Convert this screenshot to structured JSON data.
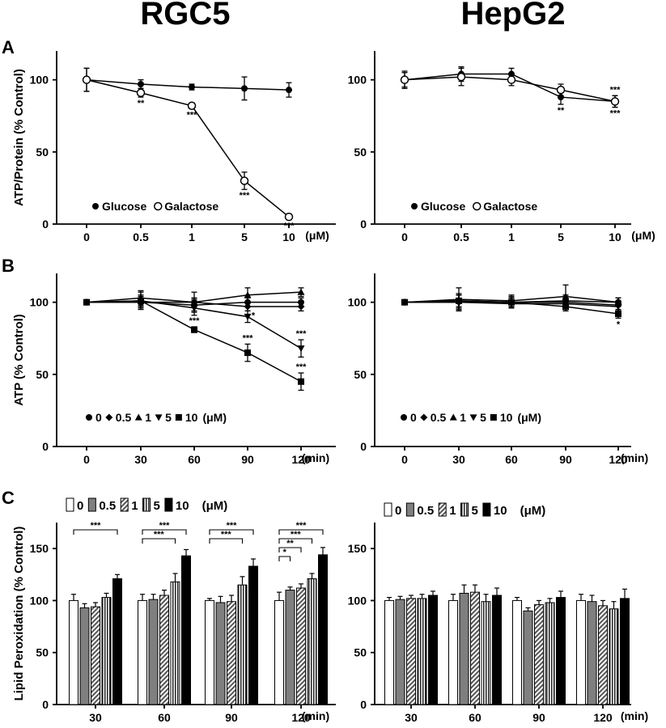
{
  "figure": {
    "column_titles": [
      "RGC5",
      "HepG2"
    ],
    "panel_labels": [
      "A",
      "B",
      "C"
    ]
  },
  "chart_data": [
    {
      "id": "A-RGC5",
      "type": "line",
      "panel": "A",
      "title": "RGC5",
      "ylabel": "ATP/Protein (% Control)",
      "xunit": "(μM)",
      "categories": [
        "0",
        "0.5",
        "1",
        "5",
        "10"
      ],
      "ylim": [
        0,
        120
      ],
      "yticks": [
        0,
        50,
        100
      ],
      "legend": [
        "Glucose",
        "Galactose"
      ],
      "series": [
        {
          "name": "Glucose",
          "marker": "filled-circle",
          "values": [
            100,
            97,
            95,
            94,
            93
          ],
          "errors": [
            8,
            3,
            2,
            8,
            5
          ],
          "labels": [
            "",
            "",
            "",
            "",
            ""
          ]
        },
        {
          "name": "Galactose",
          "marker": "open-circle",
          "values": [
            100,
            91,
            82,
            30,
            5
          ],
          "errors": [
            8,
            3,
            2,
            6,
            2
          ],
          "labels": [
            "",
            "**",
            "***",
            "***",
            "***"
          ]
        }
      ]
    },
    {
      "id": "A-HepG2",
      "type": "line",
      "panel": "A",
      "title": "HepG2",
      "ylabel": "",
      "xunit": "(μM)",
      "categories": [
        "0",
        "0.5",
        "1",
        "5",
        "10"
      ],
      "ylim": [
        0,
        120
      ],
      "yticks": [
        0,
        50,
        100
      ],
      "legend": [
        "Glucose",
        "Galactose"
      ],
      "series": [
        {
          "name": "Glucose",
          "marker": "filled-circle",
          "values": [
            100,
            104,
            104,
            88,
            85
          ],
          "errors": [
            6,
            5,
            4,
            5,
            4
          ],
          "labels": [
            "",
            "",
            "",
            "**",
            "***"
          ]
        },
        {
          "name": "Galactose",
          "marker": "open-circle",
          "values": [
            100,
            102,
            100,
            93,
            85
          ],
          "errors": [
            5,
            6,
            4,
            4,
            4
          ],
          "labels": [
            "",
            "",
            "",
            "",
            "***"
          ]
        }
      ]
    },
    {
      "id": "B-RGC5",
      "type": "line",
      "panel": "B",
      "ylabel": "ATP (% Control)",
      "xunit": "(min)",
      "categories": [
        "0",
        "30",
        "60",
        "90",
        "120"
      ],
      "ylim": [
        0,
        120
      ],
      "yticks": [
        0,
        50,
        100
      ],
      "legend": [
        "0",
        "0.5",
        "1",
        "5",
        "10"
      ],
      "legend_unit": "(μM)",
      "series": [
        {
          "name": "0",
          "marker": "circle",
          "values": [
            100,
            100,
            98,
            100,
            100
          ],
          "errors": [
            0,
            3,
            4,
            3,
            3
          ],
          "labels": [
            "",
            "",
            "",
            "",
            ""
          ]
        },
        {
          "name": "0.5",
          "marker": "diamond",
          "values": [
            100,
            100,
            100,
            97,
            97
          ],
          "errors": [
            0,
            4,
            3,
            3,
            3
          ],
          "labels": [
            "",
            "",
            "",
            "",
            ""
          ]
        },
        {
          "name": "1",
          "marker": "triangle-up",
          "values": [
            100,
            103,
            100,
            105,
            107
          ],
          "errors": [
            0,
            5,
            7,
            5,
            3
          ],
          "labels": [
            "",
            "",
            "",
            "",
            ""
          ]
        },
        {
          "name": "5",
          "marker": "triangle-down",
          "values": [
            100,
            101,
            96,
            90,
            68
          ],
          "errors": [
            0,
            6,
            5,
            4,
            6
          ],
          "labels": [
            "",
            "",
            "",
            "*",
            "***"
          ]
        },
        {
          "name": "10",
          "marker": "square",
          "values": [
            100,
            101,
            81,
            65,
            45
          ],
          "errors": [
            0,
            4,
            2,
            6,
            6
          ],
          "labels": [
            "",
            "",
            "***",
            "***",
            "***"
          ]
        }
      ]
    },
    {
      "id": "B-HepG2",
      "type": "line",
      "panel": "B",
      "ylabel": "",
      "xunit": "(min)",
      "categories": [
        "0",
        "30",
        "60",
        "90",
        "120"
      ],
      "ylim": [
        0,
        120
      ],
      "yticks": [
        0,
        50,
        100
      ],
      "legend": [
        "0",
        "0.5",
        "1",
        "5",
        "10"
      ],
      "legend_unit": "(μM)",
      "series": [
        {
          "name": "0",
          "marker": "circle",
          "values": [
            100,
            101,
            100,
            101,
            100
          ],
          "errors": [
            0,
            5,
            3,
            4,
            3
          ],
          "labels": [
            "",
            "",
            "",
            "",
            ""
          ]
        },
        {
          "name": "0.5",
          "marker": "diamond",
          "values": [
            100,
            100,
            100,
            100,
            98
          ],
          "errors": [
            0,
            5,
            4,
            5,
            3
          ],
          "labels": [
            "",
            "",
            "",
            "",
            ""
          ]
        },
        {
          "name": "1",
          "marker": "triangle-up",
          "values": [
            100,
            102,
            101,
            104,
            100
          ],
          "errors": [
            0,
            8,
            4,
            8,
            3
          ],
          "labels": [
            "",
            "",
            "",
            "",
            ""
          ]
        },
        {
          "name": "5",
          "marker": "triangle-down",
          "values": [
            100,
            100,
            99,
            99,
            97
          ],
          "errors": [
            0,
            5,
            3,
            3,
            3
          ],
          "labels": [
            "",
            "",
            "",
            "",
            ""
          ]
        },
        {
          "name": "10",
          "marker": "square",
          "values": [
            100,
            101,
            100,
            97,
            92
          ],
          "errors": [
            0,
            4,
            3,
            3,
            3
          ],
          "labels": [
            "",
            "",
            "",
            "",
            "*"
          ]
        }
      ]
    },
    {
      "id": "C-RGC5",
      "type": "bar",
      "panel": "C",
      "ylabel": "Lipid Peroxidation (% Control)",
      "xunit": "(min)",
      "categories": [
        "30",
        "60",
        "90",
        "120"
      ],
      "ylim": [
        0,
        175
      ],
      "yticks": [
        0,
        50,
        100,
        150
      ],
      "legend": [
        "0",
        "0.5",
        "1",
        "5",
        "10"
      ],
      "legend_unit": "(μM)",
      "series": [
        {
          "name": "0",
          "fill": "white",
          "values": [
            100,
            100,
            100,
            100
          ],
          "errors": [
            6,
            6,
            2,
            8
          ]
        },
        {
          "name": "0.5",
          "fill": "gray",
          "values": [
            93,
            101,
            98,
            110
          ],
          "errors": [
            4,
            5,
            6,
            3
          ]
        },
        {
          "name": "1",
          "fill": "hatch",
          "values": [
            94,
            105,
            99,
            112
          ],
          "errors": [
            4,
            5,
            6,
            4
          ]
        },
        {
          "name": "5",
          "fill": "stripes",
          "values": [
            103,
            118,
            115,
            121
          ],
          "errors": [
            4,
            8,
            8,
            5
          ]
        },
        {
          "name": "10",
          "fill": "black",
          "values": [
            121,
            143,
            133,
            144
          ],
          "errors": [
            4,
            6,
            7,
            7
          ]
        }
      ],
      "significance": [
        {
          "category": "30",
          "from": "0",
          "to": "10",
          "label": "***"
        },
        {
          "category": "60",
          "from": "0",
          "to": "10",
          "label": "***"
        },
        {
          "category": "60",
          "from": "0",
          "to": "5",
          "label": "***"
        },
        {
          "category": "90",
          "from": "0",
          "to": "10",
          "label": "***"
        },
        {
          "category": "90",
          "from": "0",
          "to": "5",
          "label": "***"
        },
        {
          "category": "120",
          "from": "0",
          "to": "10",
          "label": "***"
        },
        {
          "category": "120",
          "from": "0",
          "to": "5",
          "label": "***"
        },
        {
          "category": "120",
          "from": "0",
          "to": "1",
          "label": "**"
        },
        {
          "category": "120",
          "from": "0",
          "to": "0.5",
          "label": "*"
        }
      ]
    },
    {
      "id": "C-HepG2",
      "type": "bar",
      "panel": "C",
      "ylabel": "",
      "xunit": "(min)",
      "categories": [
        "30",
        "60",
        "90",
        "120"
      ],
      "ylim": [
        0,
        175
      ],
      "yticks": [
        0,
        50,
        100,
        150
      ],
      "legend": [
        "0",
        "0.5",
        "1",
        "5",
        "10"
      ],
      "legend_unit": "(μM)",
      "series": [
        {
          "name": "0",
          "fill": "white",
          "values": [
            100,
            100,
            100,
            100
          ],
          "errors": [
            3,
            6,
            3,
            6
          ]
        },
        {
          "name": "0.5",
          "fill": "gray",
          "values": [
            101,
            107,
            90,
            99
          ],
          "errors": [
            3,
            8,
            3,
            6
          ]
        },
        {
          "name": "1",
          "fill": "hatch",
          "values": [
            102,
            108,
            96,
            95
          ],
          "errors": [
            3,
            7,
            4,
            5
          ]
        },
        {
          "name": "5",
          "fill": "stripes",
          "values": [
            102,
            99,
            98,
            92
          ],
          "errors": [
            4,
            7,
            4,
            7
          ]
        },
        {
          "name": "10",
          "fill": "black",
          "values": [
            105,
            105,
            103,
            102
          ],
          "errors": [
            4,
            7,
            6,
            9
          ]
        }
      ],
      "significance": []
    }
  ]
}
